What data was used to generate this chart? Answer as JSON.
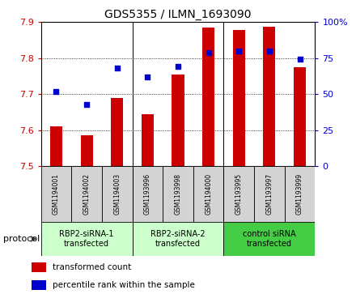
{
  "title": "GDS5355 / ILMN_1693090",
  "samples": [
    "GSM1194001",
    "GSM1194002",
    "GSM1194003",
    "GSM1193996",
    "GSM1193998",
    "GSM1194000",
    "GSM1193995",
    "GSM1193997",
    "GSM1193999"
  ],
  "bar_values": [
    7.61,
    7.585,
    7.69,
    7.645,
    7.755,
    7.885,
    7.878,
    7.887,
    7.775
  ],
  "dot_values": [
    52,
    43,
    68,
    62,
    69,
    79,
    80,
    80,
    74
  ],
  "ylim_left": [
    7.5,
    7.9
  ],
  "ylim_right": [
    0,
    100
  ],
  "yticks_left": [
    7.5,
    7.6,
    7.7,
    7.8,
    7.9
  ],
  "ytick_labels_left": [
    "7.5",
    "7.6",
    "7.7",
    "7.8",
    "7.9"
  ],
  "yticks_right": [
    0,
    25,
    50,
    75,
    100
  ],
  "ytick_labels_right": [
    "0",
    "25",
    "50",
    "75",
    "100%"
  ],
  "bar_color": "#cc0000",
  "dot_color": "#0000cc",
  "bar_bottom": 7.5,
  "group_labels": [
    "RBP2-siRNA-1\ntransfected",
    "RBP2-siRNA-2\ntransfected",
    "control siRNA\ntransfected"
  ],
  "group_colors": [
    "#ccffcc",
    "#ccffcc",
    "#44cc44"
  ],
  "group_ranges": [
    [
      0,
      2
    ],
    [
      3,
      5
    ],
    [
      6,
      8
    ]
  ],
  "protocol_label": "protocol",
  "legend_bar_label": "transformed count",
  "legend_dot_label": "percentile rank within the sample",
  "tick_color_left": "#cc0000",
  "tick_color_right": "#0000cc",
  "sample_box_color": "#d3d3d3",
  "bar_width": 0.4
}
